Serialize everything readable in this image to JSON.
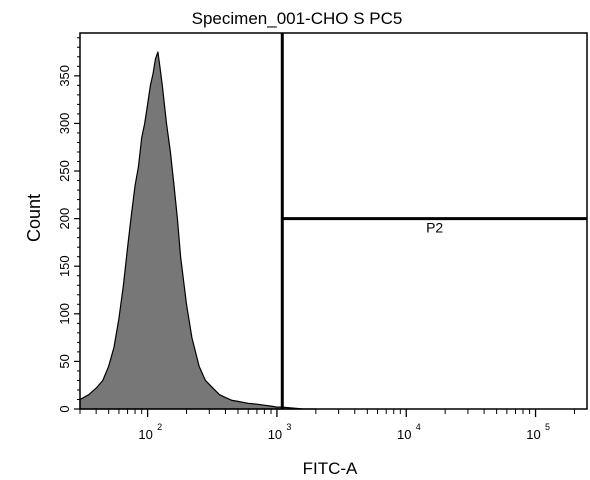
{
  "chart_data": {
    "type": "area",
    "title": "Specimen_001-CHO S PC5",
    "xlabel": "FITC-A",
    "ylabel": "Count",
    "x_scale": "log",
    "xlim": [
      30,
      250000
    ],
    "ylim": [
      0,
      395
    ],
    "x_ticks": [
      {
        "value": 100,
        "base": "10",
        "exp": "2"
      },
      {
        "value": 1000,
        "base": "10",
        "exp": "3"
      },
      {
        "value": 10000,
        "base": "10",
        "exp": "4"
      },
      {
        "value": 100000,
        "base": "10",
        "exp": "5"
      }
    ],
    "y_ticks": [
      0,
      50,
      100,
      150,
      200,
      250,
      300,
      350
    ],
    "fill_color": "#777777",
    "series": [
      {
        "x": [
          30,
          35,
          40,
          45,
          50,
          55,
          60,
          65,
          70,
          75,
          80,
          85,
          90,
          95,
          100,
          105,
          110,
          115,
          120,
          125,
          130,
          140,
          150,
          160,
          170,
          180,
          200,
          220,
          250,
          280,
          320,
          360,
          400,
          450,
          500,
          600,
          700,
          800,
          900,
          1000,
          1100,
          1300,
          1600,
          2000
        ],
        "y": [
          10,
          15,
          22,
          30,
          45,
          65,
          95,
          130,
          170,
          205,
          235,
          255,
          285,
          300,
          320,
          340,
          352,
          368,
          375,
          358,
          340,
          300,
          270,
          235,
          200,
          160,
          110,
          75,
          45,
          30,
          22,
          15,
          12,
          9,
          8,
          6,
          5,
          4,
          3,
          2,
          2,
          1,
          0,
          0
        ]
      }
    ],
    "gates": [
      {
        "name": "P2",
        "x_start": 1100,
        "x_end": 250000,
        "y": 200
      }
    ]
  }
}
